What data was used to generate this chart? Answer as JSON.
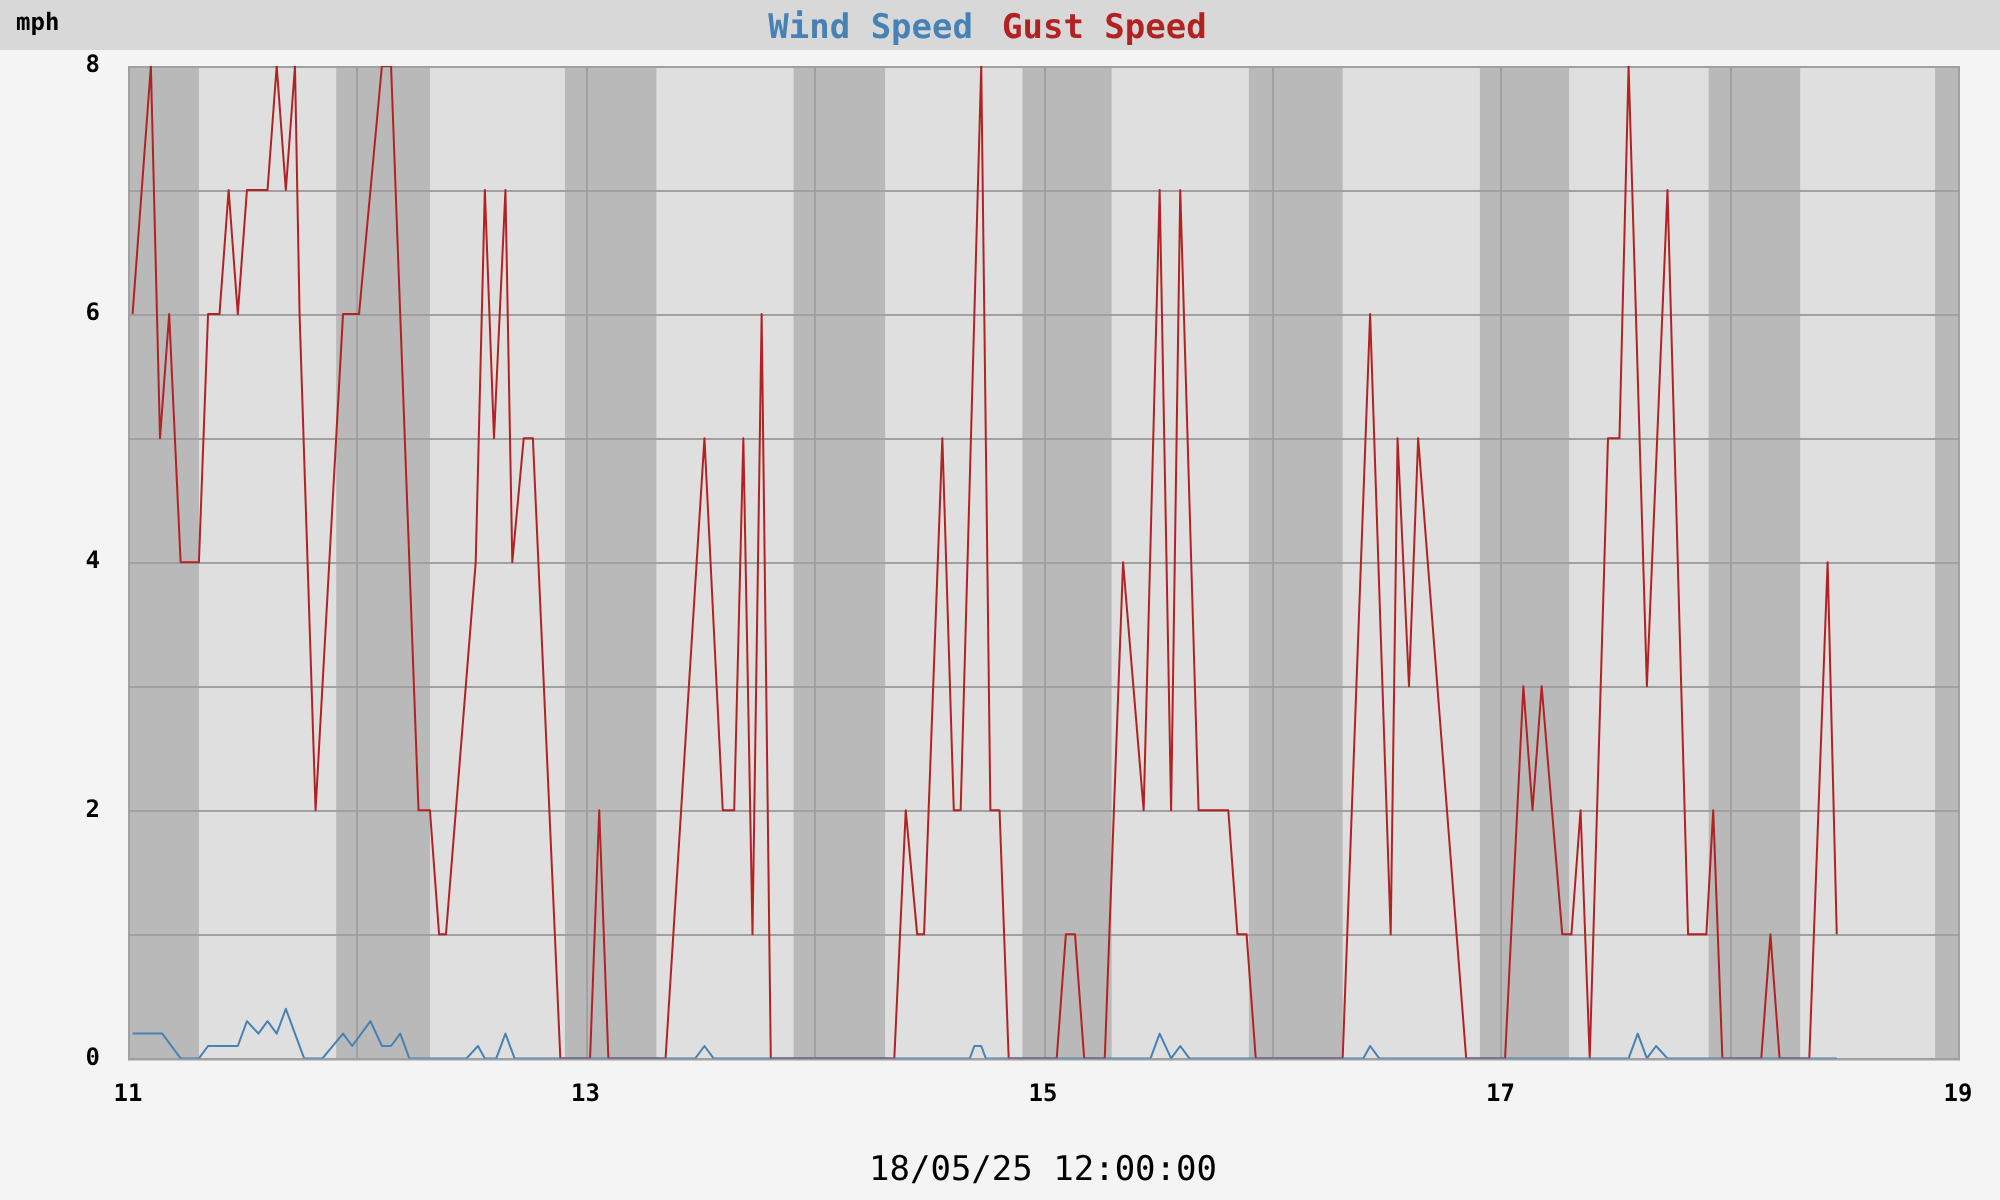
{
  "chart_data": {
    "type": "line",
    "ylabel": "mph",
    "xlabel": "18/05/25 12:00:00",
    "xlim": [
      11,
      19
    ],
    "xticks": [
      11,
      {
        "value": 12,
        "label": null
      },
      13,
      {
        "value": 14,
        "label": null
      },
      15,
      {
        "value": 16,
        "label": null
      },
      17,
      {
        "value": 18,
        "label": null
      },
      19
    ],
    "ylim": [
      0,
      8
    ],
    "yticks": [
      0,
      {
        "value": 1,
        "label": null
      },
      2,
      {
        "value": 3,
        "label": null
      },
      4,
      {
        "value": 5,
        "label": null
      },
      6,
      {
        "value": 7,
        "label": null
      },
      8
    ],
    "grid": true,
    "legend": "top",
    "marker": "none",
    "line_style": "solid",
    "bands": [
      {
        "axis": "x",
        "from": 11,
        "to": 11.31,
        "color": "#b9b9b9"
      },
      {
        "axis": "x",
        "from": 11.91,
        "to": 12.32,
        "color": "#b9b9b9"
      },
      {
        "axis": "x",
        "from": 12.91,
        "to": 13.31,
        "color": "#b9b9b9"
      },
      {
        "axis": "x",
        "from": 13.91,
        "to": 14.31,
        "color": "#b9b9b9"
      },
      {
        "axis": "x",
        "from": 14.91,
        "to": 15.3,
        "color": "#b9b9b9"
      },
      {
        "axis": "x",
        "from": 15.9,
        "to": 16.31,
        "color": "#b9b9b9"
      },
      {
        "axis": "x",
        "from": 16.91,
        "to": 17.3,
        "color": "#b9b9b9"
      },
      {
        "axis": "x",
        "from": 17.91,
        "to": 18.31,
        "color": "#b9b9b9"
      },
      {
        "axis": "x",
        "from": 18.9,
        "to": 19,
        "color": "#b9b9b9"
      }
    ],
    "series": [
      {
        "name": "Wind Speed",
        "color": "#4682b4",
        "x": [
          11.02,
          11.15,
          11.23,
          11.31,
          11.35,
          11.48,
          11.52,
          11.57,
          11.61,
          11.65,
          11.69,
          11.73,
          11.77,
          11.85,
          11.94,
          11.98,
          12.06,
          12.11,
          12.15,
          12.19,
          12.23,
          12.48,
          12.53,
          12.56,
          12.61,
          12.65,
          12.69,
          13.48,
          13.52,
          13.56,
          14.68,
          14.7,
          14.73,
          14.75,
          15.47,
          15.51,
          15.56,
          15.6,
          15.64,
          16.4,
          16.43,
          16.47,
          17.56,
          17.6,
          17.64,
          17.68,
          17.73,
          18.47
        ],
        "values": [
          0.2,
          0.2,
          0,
          0,
          0.1,
          0.1,
          0.3,
          0.2,
          0.3,
          0.2,
          0.4,
          0.2,
          0,
          0,
          0.2,
          0.1,
          0.3,
          0.1,
          0.1,
          0.2,
          0,
          0,
          0.1,
          0,
          0,
          0.2,
          0,
          0,
          0.1,
          0,
          0,
          0.1,
          0.1,
          0,
          0,
          0.2,
          0,
          0.1,
          0,
          0,
          0.1,
          0,
          0,
          0.2,
          0,
          0.1,
          0,
          0
        ]
      },
      {
        "name": "Gust Speed",
        "color": "#b22222",
        "x": [
          11.02,
          11.1,
          11.14,
          11.18,
          11.23,
          11.31,
          11.35,
          11.4,
          11.44,
          11.48,
          11.52,
          11.61,
          11.65,
          11.69,
          11.73,
          11.75,
          11.82,
          11.94,
          12.01,
          12.11,
          12.15,
          12.27,
          12.32,
          12.36,
          12.39,
          12.52,
          12.56,
          12.6,
          12.65,
          12.68,
          12.73,
          12.77,
          12.89,
          13.02,
          13.06,
          13.1,
          13.35,
          13.52,
          13.6,
          13.65,
          13.69,
          13.73,
          13.77,
          13.81,
          14.35,
          14.4,
          14.45,
          14.48,
          14.56,
          14.61,
          14.64,
          14.73,
          14.77,
          14.81,
          14.85,
          15.06,
          15.1,
          15.14,
          15.18,
          15.27,
          15.35,
          15.44,
          15.51,
          15.56,
          15.6,
          15.68,
          15.81,
          15.85,
          15.89,
          15.93,
          16.31,
          16.43,
          16.52,
          16.55,
          16.6,
          16.64,
          16.85,
          17.02,
          17.1,
          17.14,
          17.18,
          17.27,
          17.31,
          17.35,
          17.39,
          17.47,
          17.52,
          17.56,
          17.64,
          17.73,
          17.82,
          17.9,
          17.93,
          17.97,
          18.14,
          18.18,
          18.22,
          18.35,
          18.43,
          18.47
        ],
        "values": [
          6,
          8,
          5,
          6,
          4,
          4,
          6,
          6,
          7,
          6,
          7,
          7,
          8,
          7,
          8,
          6,
          2,
          6,
          6,
          8,
          8,
          2,
          2,
          1,
          1,
          4,
          7,
          5,
          7,
          4,
          5,
          5,
          0,
          0,
          2,
          0,
          0,
          5,
          2,
          2,
          5,
          1,
          6,
          0,
          0,
          2,
          1,
          1,
          5,
          2,
          2,
          8,
          2,
          2,
          0,
          0,
          1,
          1,
          0,
          0,
          4,
          2,
          7,
          2,
          7,
          2,
          2,
          1,
          1,
          0,
          0,
          6,
          1,
          5,
          3,
          5,
          0,
          0,
          3,
          2,
          3,
          1,
          1,
          2,
          0,
          5,
          5,
          8,
          3,
          7,
          1,
          1,
          2,
          0,
          0,
          1,
          0,
          0,
          4,
          1
        ]
      }
    ]
  }
}
